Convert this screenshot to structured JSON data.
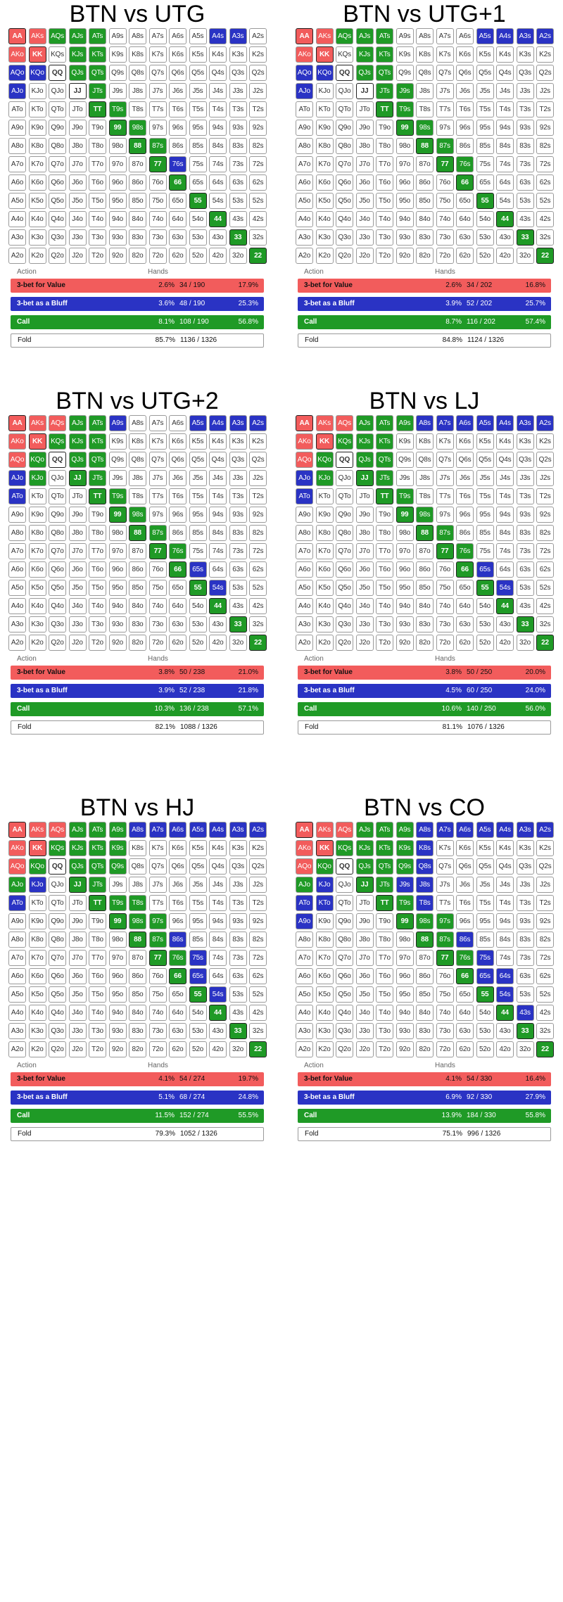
{
  "row_labels": [
    [
      "AA",
      "AKs",
      "AQs",
      "AJs",
      "ATs",
      "A9s",
      "A8s",
      "A7s",
      "A6s",
      "A5s",
      "A4s",
      "A3s",
      "A2s"
    ],
    [
      "AKo",
      "KK",
      "KQs",
      "KJs",
      "KTs",
      "K9s",
      "K8s",
      "K7s",
      "K6s",
      "K5s",
      "K4s",
      "K3s",
      "K2s"
    ],
    [
      "AQo",
      "KQo",
      "QQ",
      "QJs",
      "QTs",
      "Q9s",
      "Q8s",
      "Q7s",
      "Q6s",
      "Q5s",
      "Q4s",
      "Q3s",
      "Q2s"
    ],
    [
      "AJo",
      "KJo",
      "QJo",
      "JJ",
      "JTs",
      "J9s",
      "J8s",
      "J7s",
      "J6s",
      "J5s",
      "J4s",
      "J3s",
      "J2s"
    ],
    [
      "ATo",
      "KTo",
      "QTo",
      "JTo",
      "TT",
      "T9s",
      "T8s",
      "T7s",
      "T6s",
      "T5s",
      "T4s",
      "T3s",
      "T2s"
    ],
    [
      "A9o",
      "K9o",
      "Q9o",
      "J9o",
      "T9o",
      "99",
      "98s",
      "97s",
      "96s",
      "95s",
      "94s",
      "93s",
      "92s"
    ],
    [
      "A8o",
      "K8o",
      "Q8o",
      "J8o",
      "T8o",
      "98o",
      "88",
      "87s",
      "86s",
      "85s",
      "84s",
      "83s",
      "82s"
    ],
    [
      "A7o",
      "K7o",
      "Q7o",
      "J7o",
      "T7o",
      "97o",
      "87o",
      "77",
      "76s",
      "75s",
      "74s",
      "73s",
      "72s"
    ],
    [
      "A6o",
      "K6o",
      "Q6o",
      "J6o",
      "T6o",
      "96o",
      "86o",
      "76o",
      "66",
      "65s",
      "64s",
      "63s",
      "62s"
    ],
    [
      "A5o",
      "K5o",
      "Q5o",
      "J5o",
      "T5o",
      "95o",
      "85o",
      "75o",
      "65o",
      "55",
      "54s",
      "53s",
      "52s"
    ],
    [
      "A4o",
      "K4o",
      "Q4o",
      "J4o",
      "T4o",
      "94o",
      "84o",
      "74o",
      "64o",
      "54o",
      "44",
      "43s",
      "42s"
    ],
    [
      "A3o",
      "K3o",
      "Q3o",
      "J3o",
      "T3o",
      "93o",
      "83o",
      "73o",
      "63o",
      "53o",
      "43o",
      "33",
      "32s"
    ],
    [
      "A2o",
      "K2o",
      "Q2o",
      "J2o",
      "T2o",
      "92o",
      "82o",
      "72o",
      "62o",
      "52o",
      "42o",
      "32o",
      "22"
    ]
  ],
  "colors": {
    "value": "#f25c5c",
    "bluff": "#2a33c4",
    "call": "#1f9a26",
    "fold": "#ffffff"
  },
  "table_headers": {
    "action": "Action",
    "hands": "Hands"
  },
  "action_labels": [
    "3-bet for Value",
    "3-bet as a Bluff",
    "Call",
    "Fold"
  ],
  "panels": [
    {
      "title": "BTN vs UTG",
      "stats": [
        {
          "pct": "2.6%",
          "hands": "34 / 190",
          "right": "17.9%"
        },
        {
          "pct": "3.6%",
          "hands": "48 / 190",
          "right": "25.3%"
        },
        {
          "pct": "8.1%",
          "hands": "108 / 190",
          "right": "56.8%"
        },
        {
          "pct": "85.7%",
          "hands": "1136 / 1326",
          "right": ""
        }
      ],
      "grid": [
        "VVCCC.....BB.",
        "VV.CC........",
        "BB.CC........",
        "B...C........",
        "....CC.......",
        ".....CC......",
        "......CC.....",
        ".......CB....",
        "........C....",
        ".........C...",
        "..........C..",
        "...........C.",
        "............C"
      ]
    },
    {
      "title": "BTN vs UTG+1",
      "stats": [
        {
          "pct": "2.6%",
          "hands": "34 / 202",
          "right": "16.8%"
        },
        {
          "pct": "3.9%",
          "hands": "52 / 202",
          "right": "25.7%"
        },
        {
          "pct": "8.7%",
          "hands": "116 / 202",
          "right": "57.4%"
        },
        {
          "pct": "84.8%",
          "hands": "1124 / 1326",
          "right": ""
        }
      ],
      "grid": [
        "VVCCC....BBBB",
        "VV.CC........",
        "BB.CC........",
        "B...CC.......",
        "....CC.......",
        ".....CC......",
        "......CC.....",
        ".......CC....",
        "........C....",
        ".........C...",
        "..........C..",
        "...........C.",
        "............C"
      ]
    },
    {
      "title": "BTN vs UTG+2",
      "stats": [
        {
          "pct": "3.8%",
          "hands": "50 / 238",
          "right": "21.0%"
        },
        {
          "pct": "3.9%",
          "hands": "52 / 238",
          "right": "21.8%"
        },
        {
          "pct": "10.3%",
          "hands": "136 / 238",
          "right": "57.1%"
        },
        {
          "pct": "82.1%",
          "hands": "1088 / 1326",
          "right": ""
        }
      ],
      "grid": [
        "VVVCCB...BBBB",
        "VVCCC........",
        "VC.CC........",
        "BC.CC........",
        "B...CC.......",
        ".....CC......",
        "......CC.....",
        ".......CC....",
        "........CB...",
        ".........CB..",
        "..........C..",
        "...........C.",
        "............C"
      ]
    },
    {
      "title": "BTN vs LJ",
      "stats": [
        {
          "pct": "3.8%",
          "hands": "50 / 250",
          "right": "20.0%"
        },
        {
          "pct": "4.5%",
          "hands": "60 / 250",
          "right": "24.0%"
        },
        {
          "pct": "10.6%",
          "hands": "140 / 250",
          "right": "56.0%"
        },
        {
          "pct": "81.1%",
          "hands": "1076 / 1326",
          "right": ""
        }
      ],
      "grid": [
        "VVVCCCBBBBBBB",
        "VVCCC........",
        "VC.CC........",
        "BC.CC........",
        "B...CC.......",
        ".....CC......",
        "......CC.....",
        ".......CC....",
        "........CB...",
        ".........CB..",
        "..........C..",
        "...........C.",
        "............C"
      ]
    },
    {
      "title": "BTN vs HJ",
      "stats": [
        {
          "pct": "4.1%",
          "hands": "54 / 274",
          "right": "19.7%"
        },
        {
          "pct": "5.1%",
          "hands": "68 / 274",
          "right": "24.8%"
        },
        {
          "pct": "11.5%",
          "hands": "152 / 274",
          "right": "55.5%"
        },
        {
          "pct": "79.3%",
          "hands": "1052 / 1326",
          "right": ""
        }
      ],
      "grid": [
        "VVVCCCBBBBBBB",
        "VVCCCC.......",
        "VC.CCC.......",
        "CB.CC........",
        "B...CCC......",
        ".....CCC.....",
        "......CCB....",
        ".......CCB...",
        "........CB...",
        ".........CB..",
        "..........C..",
        "...........C.",
        "............C"
      ]
    },
    {
      "title": "BTN vs CO",
      "stats": [
        {
          "pct": "4.1%",
          "hands": "54 / 330",
          "right": "16.4%"
        },
        {
          "pct": "6.9%",
          "hands": "92 / 330",
          "right": "27.9%"
        },
        {
          "pct": "13.9%",
          "hands": "184 / 330",
          "right": "55.8%"
        },
        {
          "pct": "75.1%",
          "hands": "996 / 1326",
          "right": ""
        }
      ],
      "grid": [
        "VVVCCCBBBBBBB",
        "VVCCCCB......",
        "VC.CCCB......",
        "CB.CCBB......",
        "BB..CCB......",
        "B....CCC.....",
        "......CCB....",
        ".......CCB...",
        "........CBB..",
        ".........CB..",
        "..........CB.",
        "...........C.",
        "............C"
      ]
    }
  ]
}
